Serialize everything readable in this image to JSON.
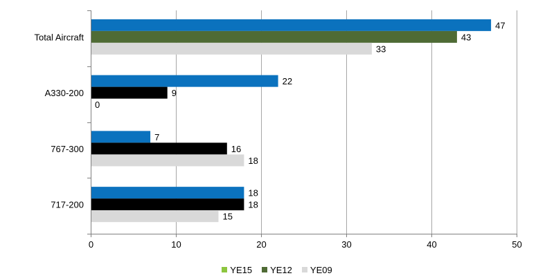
{
  "chart_data": {
    "type": "bar",
    "orientation": "horizontal",
    "categories": [
      "Total Aircraft",
      "A330-200",
      "767-300",
      "717-200"
    ],
    "series": [
      {
        "name": "YE15",
        "values": [
          47,
          22,
          7,
          18
        ],
        "colors": [
          "#0b72be",
          "#0b72be",
          "#0b72be",
          "#0b72be"
        ]
      },
      {
        "name": "YE12",
        "values": [
          43,
          9,
          16,
          18
        ],
        "colors": [
          "#4f6b35",
          "#000000",
          "#000000",
          "#000000"
        ]
      },
      {
        "name": "YE09",
        "values": [
          33,
          0,
          18,
          15
        ],
        "colors": [
          "#d9d9d9",
          "#d9d9d9",
          "#d9d9d9",
          "#d9d9d9"
        ]
      }
    ],
    "data_labels": [
      [
        "47",
        "43",
        "33"
      ],
      [
        "22",
        "9",
        "0"
      ],
      [
        "7",
        "16",
        "18"
      ],
      [
        "18",
        "18",
        "15"
      ]
    ],
    "xlim": [
      0,
      50
    ],
    "x_ticks": [
      "0",
      "10",
      "20",
      "30",
      "40",
      "50"
    ],
    "grid": "vertical",
    "legend_position": "bottom"
  },
  "legend": {
    "items": [
      {
        "label": "YE15",
        "color": "#8dc63f"
      },
      {
        "label": "YE12",
        "color": "#4f6b35"
      },
      {
        "label": "YE09",
        "color": "#d9d9d9"
      }
    ]
  }
}
